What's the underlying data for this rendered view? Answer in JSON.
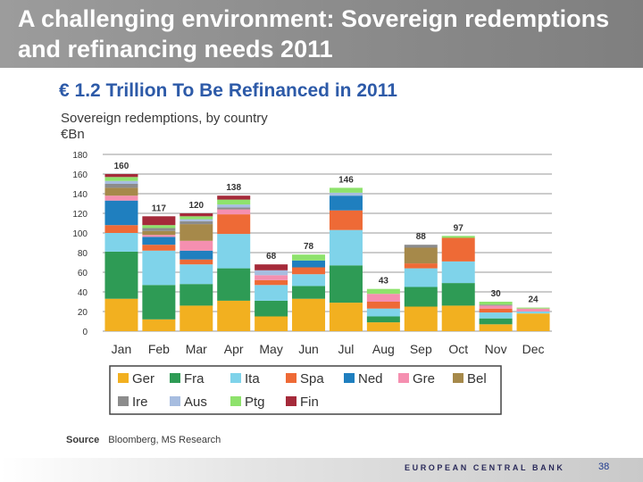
{
  "slide": {
    "title": "A challenging environment: Sovereign redemptions and refinancing needs 2011",
    "source_label": "Source",
    "source_text": "Bloomberg, MS Research",
    "footer": "EUROPEAN CENTRAL BANK",
    "page_number": "38"
  },
  "chart_data": {
    "type": "bar",
    "stacked": true,
    "title": "€ 1.2 Trillion To Be Refinanced in 2011",
    "subtitle": "Sovereign redemptions, by country",
    "ylabel": "€Bn",
    "xlabel": "",
    "ylim": [
      0,
      180
    ],
    "yticks": [
      0,
      20,
      40,
      60,
      80,
      100,
      120,
      140,
      160,
      180
    ],
    "grid": true,
    "legend_position": "bottom",
    "categories": [
      "Jan",
      "Feb",
      "Mar",
      "Apr",
      "May",
      "Jun",
      "Jul",
      "Aug",
      "Sep",
      "Oct",
      "Nov",
      "Dec"
    ],
    "totals": [
      160,
      117,
      120,
      138,
      68,
      78,
      146,
      43,
      88,
      97,
      30,
      24
    ],
    "series": [
      {
        "name": "Ger",
        "color": "#f2b020",
        "values": [
          33,
          12,
          26,
          31,
          15,
          33,
          29,
          9,
          25,
          26,
          7,
          18
        ]
      },
      {
        "name": "Fra",
        "color": "#2e9b55",
        "values": [
          48,
          35,
          22,
          33,
          16,
          13,
          38,
          6,
          20,
          23,
          6,
          0
        ]
      },
      {
        "name": "Ita",
        "color": "#7fd3ea",
        "values": [
          19,
          35,
          20,
          35,
          16,
          12,
          36,
          8,
          19,
          22,
          6,
          2
        ]
      },
      {
        "name": "Spa",
        "color": "#ee6a36",
        "values": [
          8,
          6,
          5,
          20,
          5,
          7,
          20,
          7,
          5,
          24,
          4,
          0
        ]
      },
      {
        "name": "Ned",
        "color": "#1f7fbf",
        "values": [
          25,
          8,
          9,
          0,
          0,
          7,
          15,
          0,
          0,
          0,
          0,
          0
        ]
      },
      {
        "name": "Gre",
        "color": "#f58fb0",
        "values": [
          5,
          2,
          10,
          5,
          5,
          0,
          0,
          8,
          0,
          0,
          3,
          3
        ]
      },
      {
        "name": "Bel",
        "color": "#a6894a",
        "values": [
          8,
          4,
          17,
          0,
          0,
          0,
          0,
          0,
          16,
          0,
          0,
          0
        ]
      },
      {
        "name": "Ire",
        "color": "#8c8c8c",
        "values": [
          4,
          3,
          3,
          2,
          0,
          0,
          0,
          0,
          3,
          0,
          1,
          0
        ]
      },
      {
        "name": "Aus",
        "color": "#a7bde0",
        "values": [
          3,
          0,
          2,
          3,
          5,
          0,
          3,
          0,
          0,
          0,
          0,
          0
        ]
      },
      {
        "name": "Ptg",
        "color": "#8ee26c",
        "values": [
          4,
          3,
          3,
          5,
          0,
          6,
          5,
          5,
          0,
          2,
          3,
          1
        ]
      },
      {
        "name": "Fin",
        "color": "#a52a3a",
        "values": [
          3,
          9,
          3,
          4,
          6,
          0,
          0,
          0,
          0,
          0,
          0,
          0
        ]
      }
    ]
  }
}
